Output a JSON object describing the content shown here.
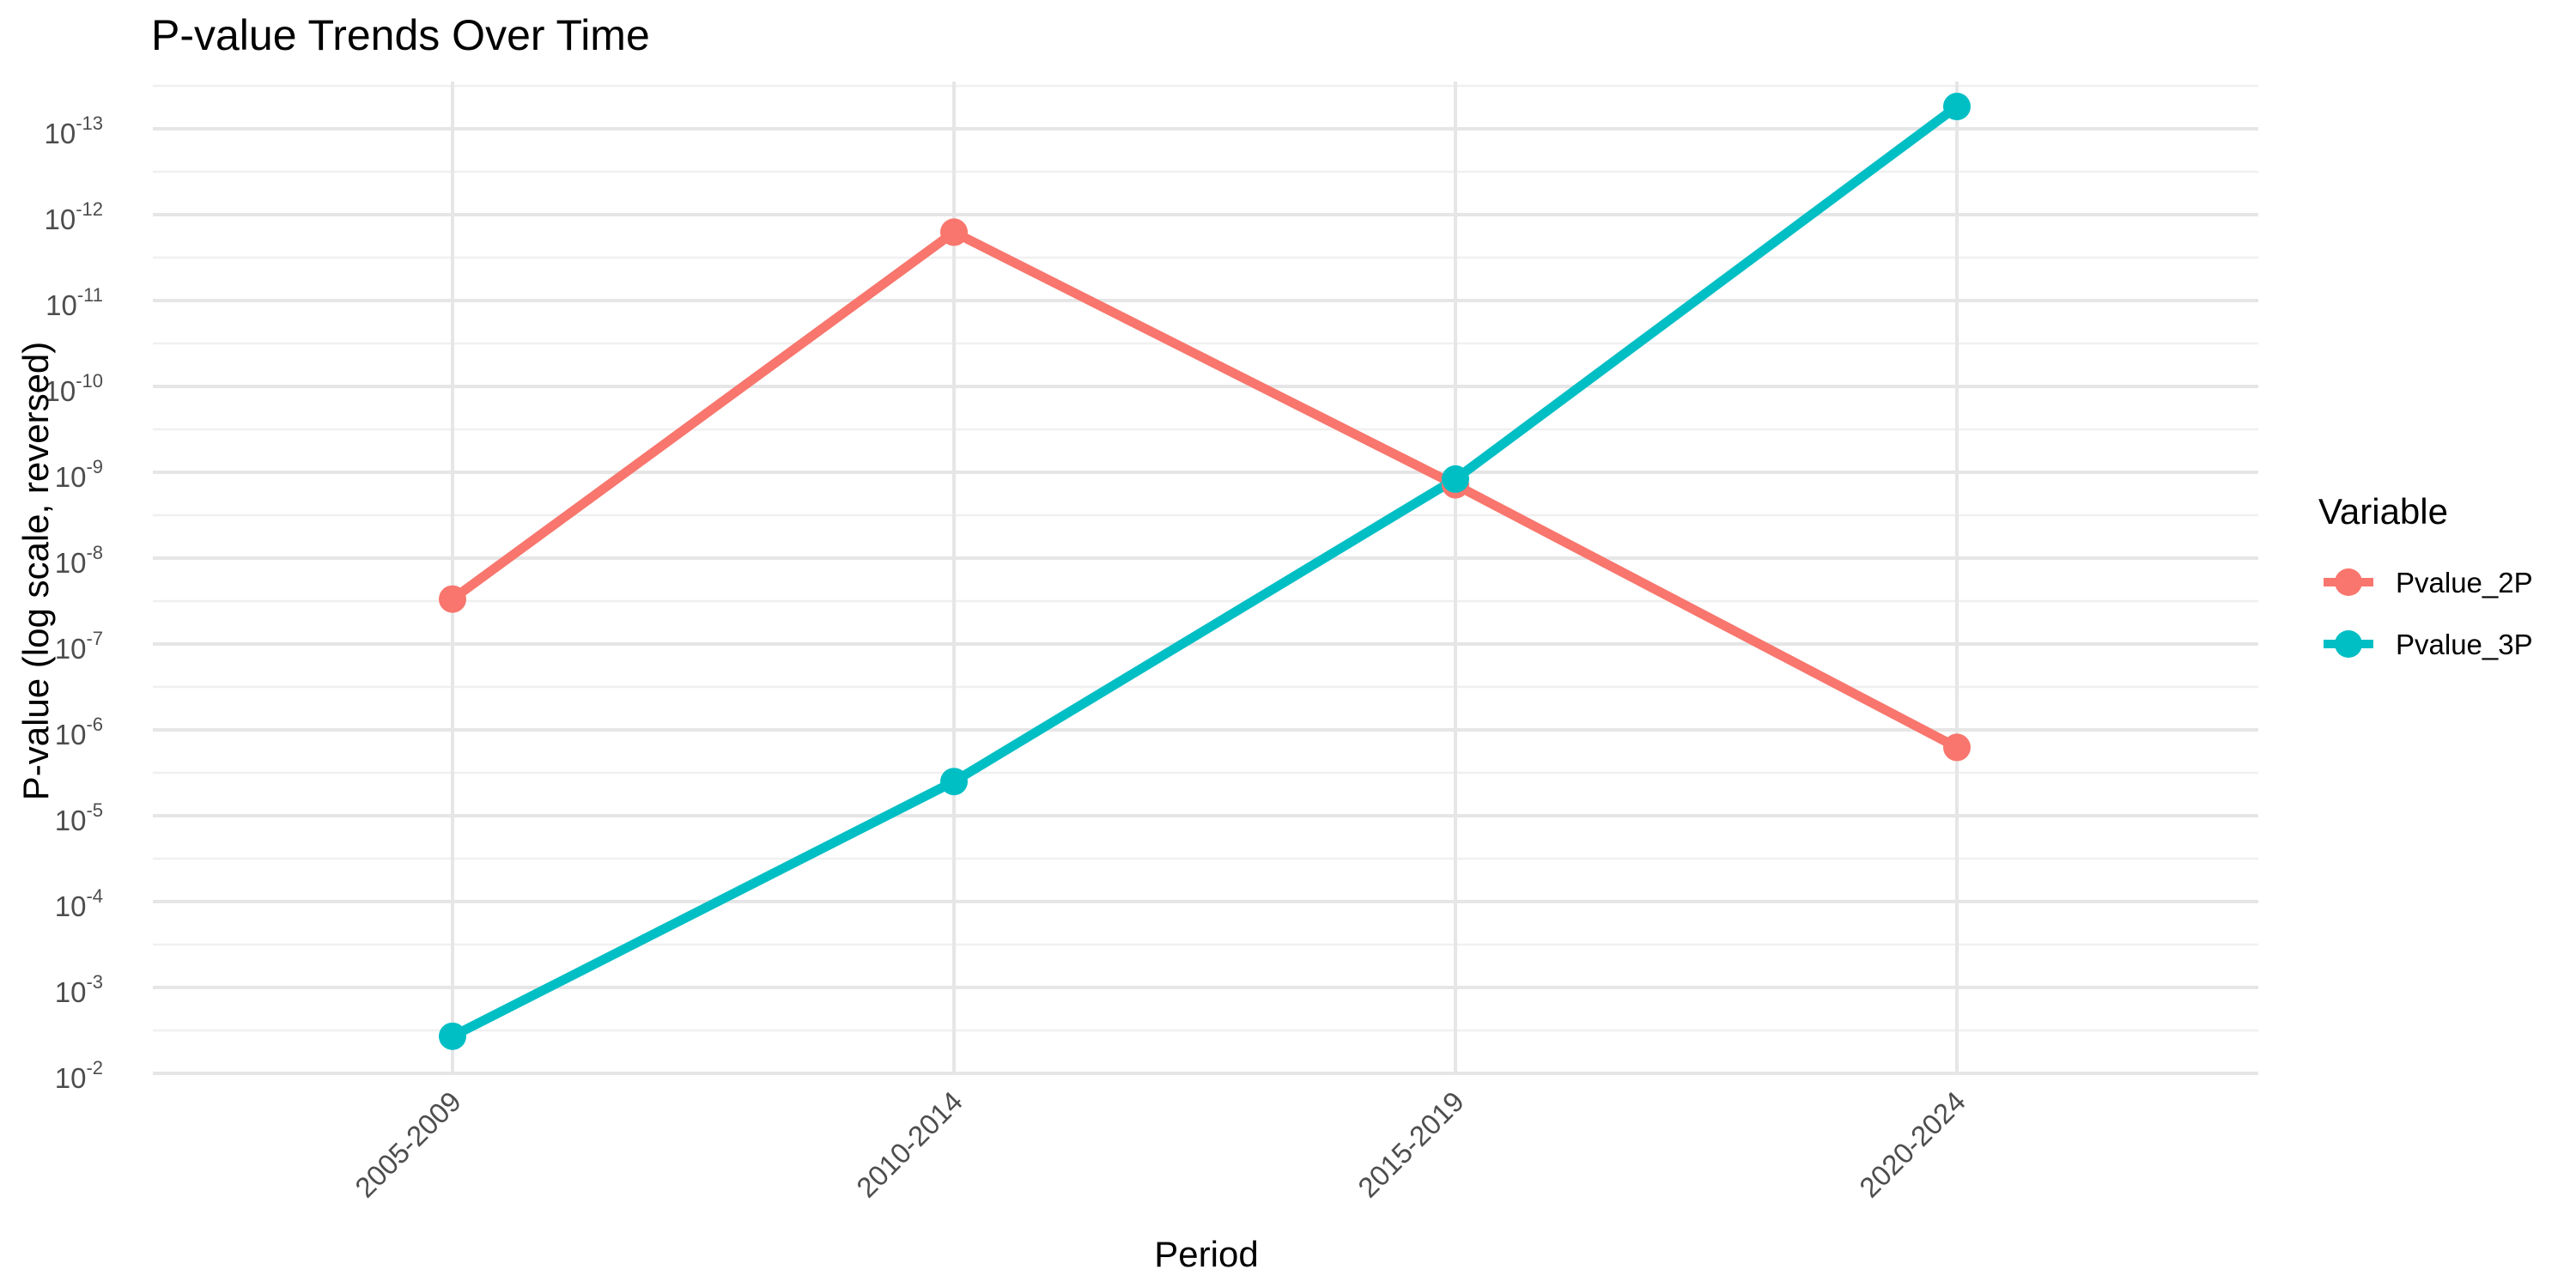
{
  "chart_data": {
    "type": "line",
    "title": "P-value Trends Over Time",
    "xlabel": "Period",
    "ylabel": "P-value (log scale, reversed)",
    "categories": [
      "2005-2009",
      "2010-2014",
      "2015-2019",
      "2020-2024"
    ],
    "y_scale": "log10, reversed",
    "ylim": [
      0.01,
      1e-13
    ],
    "y_ticks": [
      {
        "base": "10",
        "exp": "-2"
      },
      {
        "base": "10",
        "exp": "-3"
      },
      {
        "base": "10",
        "exp": "-4"
      },
      {
        "base": "10",
        "exp": "-5"
      },
      {
        "base": "10",
        "exp": "-6"
      },
      {
        "base": "10",
        "exp": "-7"
      },
      {
        "base": "10",
        "exp": "-8"
      },
      {
        "base": "10",
        "exp": "-9"
      },
      {
        "base": "10",
        "exp": "-10"
      },
      {
        "base": "10",
        "exp": "-11"
      },
      {
        "base": "10",
        "exp": "-12"
      },
      {
        "base": "10",
        "exp": "-13"
      }
    ],
    "grid": true,
    "legend": {
      "title": "Variable",
      "position": "right"
    },
    "series": [
      {
        "name": "Pvalue_2P",
        "color": "#F8766D",
        "values": [
          3e-08,
          1.6e-12,
          1.4e-09,
          1.6e-06
        ]
      },
      {
        "name": "Pvalue_3P",
        "color": "#00BFC4",
        "values": [
          0.0037,
          4e-06,
          1.2e-09,
          5.5e-14
        ]
      }
    ]
  }
}
